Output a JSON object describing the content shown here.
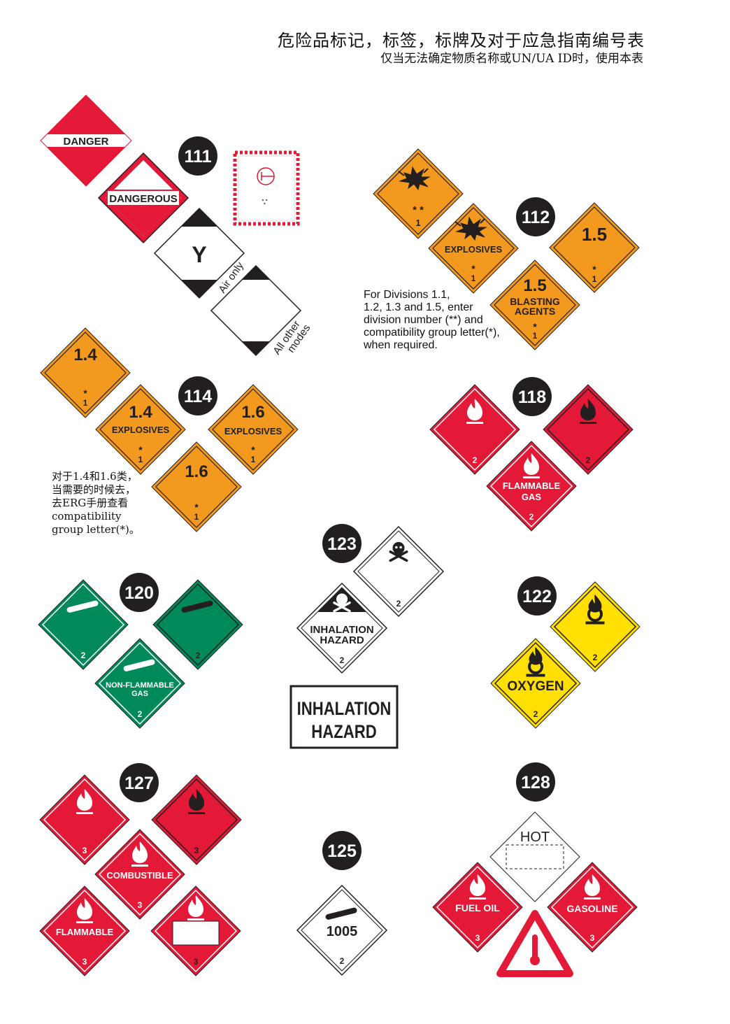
{
  "header": {
    "title": "危险品标记，标签，标牌及对于应急指南编号表",
    "subtitle": "仅当无法确定物质名称或UN/UA ID时，使用本表"
  },
  "guides": [
    "111",
    "112",
    "114",
    "118",
    "120",
    "122",
    "123",
    "125",
    "127",
    "128"
  ],
  "notes": {
    "explosives": "For Divisions 1.1,\n1.2, 1.3 and 1.5, enter\ndivision number (**) and\ncompatibility group letter(*),\nwhen required.",
    "division14": "对于1.4和1.6类，\n当需要的时候去，\n去ERG手册查看\ncompatibility\ngroup letter(*)。"
  },
  "labels": {
    "danger": "DANGER",
    "dangerous": "DANGEROUS",
    "y": "Y",
    "air_only": "Air only",
    "all_other_modes_1": "All other",
    "all_other_modes_2": "modes",
    "explosives": "EXPLOSIVES",
    "blasting_1": "BLASTING",
    "blasting_2": "AGENTS",
    "div_15": "1.5",
    "div_14": "1.4",
    "div_16": "1.6",
    "star": "*",
    "stars": "* *",
    "class_1": "1",
    "class_2": "2",
    "class_3": "3",
    "flammable_gas_1": "FLAMMABLE",
    "flammable_gas_2": "GAS",
    "non_flammable_gas_1": "NON-FLAMMABLE",
    "non_flammable_gas_2": "GAS",
    "inhalation_1": "INHALATION",
    "inhalation_2": "HAZARD",
    "oxygen": "OXYGEN",
    "un_number": "1005",
    "combustible": "COMBUSTIBLE",
    "flammable": "FLAMMABLE",
    "hot": "HOT",
    "fuel_oil": "FUEL OIL",
    "gasoline": "GASOLINE"
  },
  "colors": {
    "red": "#E31937",
    "orange": "#F39A1E",
    "green": "#008A5A",
    "yellow": "#FFE000",
    "black": "#231F20"
  }
}
